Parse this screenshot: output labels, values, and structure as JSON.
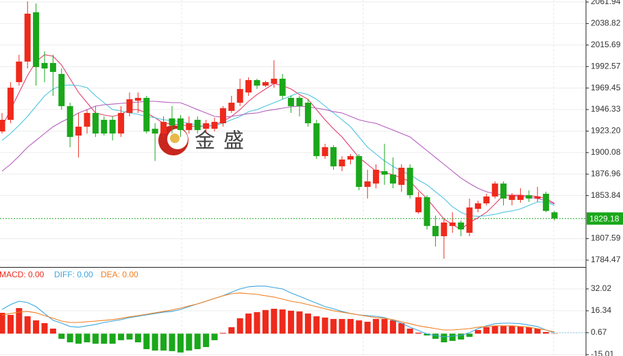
{
  "chart_data": [
    {
      "type": "candlestick",
      "watermark": "金盛",
      "up_color": "#ee2a1c",
      "down_color": "#1aa71a",
      "last_price_color": "#1aa71a",
      "ylim": [
        1777.1,
        2064.1
      ],
      "yticks": [
        2061.94,
        2038.82,
        2015.69,
        1992.57,
        1969.45,
        1946.33,
        {
          "value": 1923.2,
          "label": "1923.20"
        },
        1900.08,
        1876.96,
        1853.84,
        1807.59,
        1784.47
      ],
      "grid": true,
      "open": [
        1922.8,
        1935.3,
        1975.8,
        1997.9,
        2050.9,
        1996.4,
        1996.4,
        1984.6,
        1950.0,
        1918.4,
        1927.9,
        1942.7,
        1935.3,
        1935.3,
        1920.6,
        1942.7,
        1955.9,
        1958.9,
        1925.7,
        1920.6,
        1936.8,
        1936.8,
        1924.3,
        1935.3,
        1925.7,
        1925.7,
        1931.6,
        1944.9,
        1953.7,
        1964.7,
        1978.0,
        1972.1,
        1974.3,
        1979.5,
        1958.9,
        1958.9,
        1953.7,
        1931.6,
        1896.3,
        1905.9,
        1885.3,
        1892.6,
        1896.3,
        1863.2,
        1866.8,
        1880.1,
        1876.4,
        1865.4,
        1883.8,
        1835.9,
        1852.1,
        1821.2,
        1810.2,
        1821.2,
        1824.9,
        1813.9,
        1839.6,
        1845.5,
        1852.9,
        1866.8,
        1849.2,
        1849.2,
        1854.3,
        1850.7,
        1855.8,
        1835.9
      ],
      "high": [
        1942.7,
        1975.8,
        2005.2,
        2062.6,
        2060.4,
        2008.9,
        2005.2,
        1990.5,
        1953.7,
        1942.7,
        1946.3,
        1950.0,
        1939.0,
        1939.0,
        1950.0,
        1964.7,
        1964.7,
        1961.1,
        1931.6,
        1939.0,
        1950.0,
        1940.5,
        1939.0,
        1939.0,
        1935.3,
        1937.5,
        1950.0,
        1961.1,
        1979.5,
        1980.9,
        1979.5,
        1977.3,
        1999.3,
        1984.6,
        1961.1,
        1961.1,
        1957.4,
        1935.3,
        1909.5,
        1908.1,
        1896.3,
        1898.5,
        1898.5,
        1881.6,
        1887.5,
        1909.5,
        1894.8,
        1887.5,
        1887.5,
        1858.0,
        1854.3,
        1832.3,
        1828.6,
        1835.9,
        1827.1,
        1850.7,
        1848.4,
        1855.8,
        1869.1,
        1869.1,
        1856.6,
        1861.7,
        1859.5,
        1863.2,
        1858.0,
        1837.4
      ],
      "low": [
        1920.6,
        1931.6,
        1972.1,
        1990.5,
        1972.1,
        1975.8,
        1961.1,
        1946.3,
        1905.9,
        1894.8,
        1920.6,
        1916.9,
        1918.4,
        1913.2,
        1916.9,
        1939.0,
        1942.7,
        1920.6,
        1891.1,
        1916.9,
        1920.6,
        1916.9,
        1920.6,
        1920.6,
        1920.6,
        1922.8,
        1927.9,
        1942.7,
        1950.0,
        1961.1,
        1968.4,
        1970.6,
        1969.9,
        1957.4,
        1942.7,
        1939.0,
        1927.9,
        1893.3,
        1893.3,
        1881.6,
        1880.1,
        1887.5,
        1859.5,
        1850.7,
        1861.7,
        1865.4,
        1861.7,
        1858.0,
        1850.7,
        1834.5,
        1817.5,
        1799.1,
        1785.9,
        1813.9,
        1810.2,
        1810.2,
        1835.9,
        1843.3,
        1850.7,
        1843.3,
        1843.3,
        1846.2,
        1847.0,
        1847.0,
        1835.9,
        1827.1
      ],
      "close": [
        1935.3,
        1969.9,
        1997.9,
        2049.4,
        1992.0,
        1990.5,
        1986.8,
        1950.0,
        1916.9,
        1927.9,
        1942.7,
        1920.6,
        1920.6,
        1920.6,
        1942.7,
        1957.4,
        1958.9,
        1922.8,
        1920.6,
        1933.1,
        1929.4,
        1924.3,
        1931.6,
        1924.3,
        1931.6,
        1933.1,
        1947.8,
        1953.7,
        1968.4,
        1978.0,
        1972.1,
        1975.8,
        1979.5,
        1961.1,
        1950.0,
        1950.0,
        1931.6,
        1896.3,
        1905.9,
        1885.3,
        1892.6,
        1896.3,
        1863.2,
        1869.1,
        1881.6,
        1876.4,
        1866.8,
        1883.8,
        1854.3,
        1852.1,
        1821.2,
        1810.2,
        1824.9,
        1824.9,
        1817.5,
        1841.1,
        1845.5,
        1852.9,
        1866.8,
        1850.7,
        1854.3,
        1854.3,
        1850.7,
        1852.9,
        1837.4,
        1829.18
      ],
      "lines": [
        {
          "color": "#e23d6a",
          "values": [
            1927.9,
            1946.3,
            1964.7,
            1983.1,
            1997.9,
            2005.2,
            2003.7,
            1994.2,
            1979.5,
            1964.7,
            1953.7,
            1942.7,
            1940.5,
            1939.0,
            1941.2,
            1946.3,
            1946.3,
            1942.7,
            1937.5,
            1931.6,
            1930.9,
            1930.1,
            1928.7,
            1927.9,
            1928.7,
            1929.4,
            1933.8,
            1939.0,
            1946.3,
            1955.2,
            1962.5,
            1968.4,
            1974.3,
            1972.1,
            1968.4,
            1962.5,
            1957.4,
            1946.3,
            1935.3,
            1925.7,
            1916.9,
            1905.9,
            1894.8,
            1887.5,
            1880.1,
            1878.6,
            1876.4,
            1872.7,
            1869.1,
            1859.5,
            1850.7,
            1839.6,
            1828.6,
            1822.7,
            1817.5,
            1824.9,
            1830.1,
            1835.9,
            1844.8,
            1854.3,
            1854.3,
            1854.3,
            1853.6,
            1852.9,
            1850.7,
            1845.5
          ]
        },
        {
          "color": "#4cc3e0",
          "values": [
            1913.2,
            1920.6,
            1929.4,
            1939.0,
            1950.0,
            1961.1,
            1968.4,
            1972.1,
            1972.8,
            1972.1,
            1969.9,
            1961.1,
            1953.7,
            1946.3,
            1944.9,
            1942.7,
            1941.2,
            1939.0,
            1937.5,
            1935.3,
            1934.6,
            1933.1,
            1931.6,
            1929.4,
            1927.9,
            1929.4,
            1931.6,
            1935.3,
            1939.0,
            1944.1,
            1946.3,
            1950.0,
            1953.7,
            1957.4,
            1961.1,
            1964.7,
            1962.5,
            1957.4,
            1950.0,
            1942.7,
            1935.3,
            1927.9,
            1916.9,
            1905.9,
            1898.5,
            1891.1,
            1885.3,
            1880.1,
            1876.4,
            1870.5,
            1865.4,
            1858.0,
            1850.7,
            1841.8,
            1835.9,
            1832.3,
            1831.5,
            1832.3,
            1833.7,
            1835.9,
            1837.4,
            1839.6,
            1843.3,
            1847.0,
            1847.0,
            1843.3
          ]
        },
        {
          "color": "#b35bbd",
          "values": [
            1880.1,
            1887.5,
            1896.3,
            1905.9,
            1913.2,
            1920.6,
            1927.9,
            1933.1,
            1937.5,
            1942.7,
            1946.3,
            1950.0,
            1951.5,
            1952.2,
            1953.0,
            1953.7,
            1954.4,
            1955.2,
            1955.2,
            1954.4,
            1953.7,
            1953.7,
            1950.0,
            1946.3,
            1942.7,
            1939.0,
            1938.2,
            1939.0,
            1940.5,
            1941.9,
            1942.7,
            1944.9,
            1946.3,
            1947.8,
            1949.3,
            1950.0,
            1949.3,
            1947.8,
            1946.3,
            1944.1,
            1942.7,
            1939.0,
            1935.3,
            1933.1,
            1931.6,
            1927.9,
            1924.3,
            1920.6,
            1916.9,
            1909.5,
            1902.2,
            1894.8,
            1887.5,
            1880.1,
            1872.7,
            1866.9,
            1861.7,
            1858.0,
            1855.8,
            1854.3,
            1853.6,
            1852.9,
            1852.1,
            1850.7,
            1848.5,
            1844.8
          ]
        }
      ]
    },
    {
      "type": "macd",
      "ylim": [
        -16.0,
        46.7
      ],
      "yticks": [
        32.02,
        16.34,
        0.67,
        -15.01
      ],
      "grid": true,
      "series": [
        {
          "name": "MACD: 0.00",
          "color": "#ee2a1c",
          "negative_color": "#1aa71a",
          "values": [
            14.9,
            13.4,
            18.3,
            12.4,
            9.5,
            7.5,
            3.6,
            -3.7,
            -6.2,
            -7.2,
            -6.2,
            -7.2,
            -7.2,
            -7.2,
            -4.7,
            -4.2,
            -6.2,
            -11.1,
            -12.1,
            -12.1,
            -12.5,
            -13.5,
            -12.1,
            -11.1,
            -9.6,
            -4.7,
            0.5,
            4.6,
            11.0,
            14.4,
            15.4,
            16.9,
            17.8,
            17.3,
            16.4,
            15.9,
            14.4,
            12.4,
            11.5,
            10.5,
            10.5,
            10.5,
            9.5,
            8.5,
            10.5,
            10.5,
            9.5,
            7.5,
            3.6,
            0.7,
            -1.3,
            -3.7,
            -6.2,
            -5.2,
            -4.2,
            -2.3,
            2.6,
            4.6,
            5.6,
            5.6,
            5.6,
            5.1,
            4.6,
            3.6,
            1.2,
            0.2
          ]
        },
        {
          "name": "DIFF: 0.00",
          "color": "#3aa6e0",
          "values": [
            17.3,
            20.8,
            23.2,
            22.2,
            19.3,
            14.4,
            9.5,
            7.5,
            5.1,
            4.6,
            5.6,
            6.6,
            8.0,
            9.0,
            10.0,
            11.5,
            12.4,
            13.4,
            14.4,
            15.4,
            15.9,
            17.3,
            19.3,
            21.3,
            23.2,
            25.2,
            27.1,
            29.6,
            32.0,
            33.5,
            34.0,
            34.0,
            33.0,
            32.0,
            29.1,
            26.7,
            24.2,
            21.8,
            19.3,
            17.8,
            15.9,
            14.4,
            13.4,
            12.9,
            12.4,
            11.5,
            9.5,
            7.5,
            4.6,
            2.2,
            -0.3,
            -1.3,
            -2.3,
            -1.8,
            -1.3,
            0.7,
            3.6,
            5.6,
            7.1,
            7.5,
            7.5,
            7.1,
            6.1,
            5.1,
            2.6,
            0.7
          ]
        },
        {
          "name": "DEA: 0.00",
          "color": "#f07d1e",
          "values": [
            13.4,
            14.4,
            15.4,
            15.9,
            14.9,
            12.9,
            11.0,
            9.0,
            8.0,
            8.0,
            8.5,
            9.0,
            9.5,
            10.0,
            11.0,
            12.0,
            12.9,
            13.9,
            14.9,
            15.9,
            16.9,
            18.3,
            19.8,
            21.3,
            23.2,
            25.2,
            27.1,
            28.6,
            29.1,
            28.6,
            28.1,
            27.1,
            26.2,
            24.7,
            23.2,
            22.2,
            20.8,
            19.3,
            17.8,
            16.4,
            15.4,
            14.4,
            13.4,
            12.4,
            11.5,
            11.0,
            10.0,
            8.5,
            7.1,
            5.6,
            4.6,
            3.6,
            2.6,
            2.6,
            3.1,
            3.6,
            4.6,
            5.1,
            5.6,
            5.6,
            5.6,
            5.1,
            4.6,
            3.6,
            2.6,
            1.2
          ]
        }
      ]
    }
  ]
}
